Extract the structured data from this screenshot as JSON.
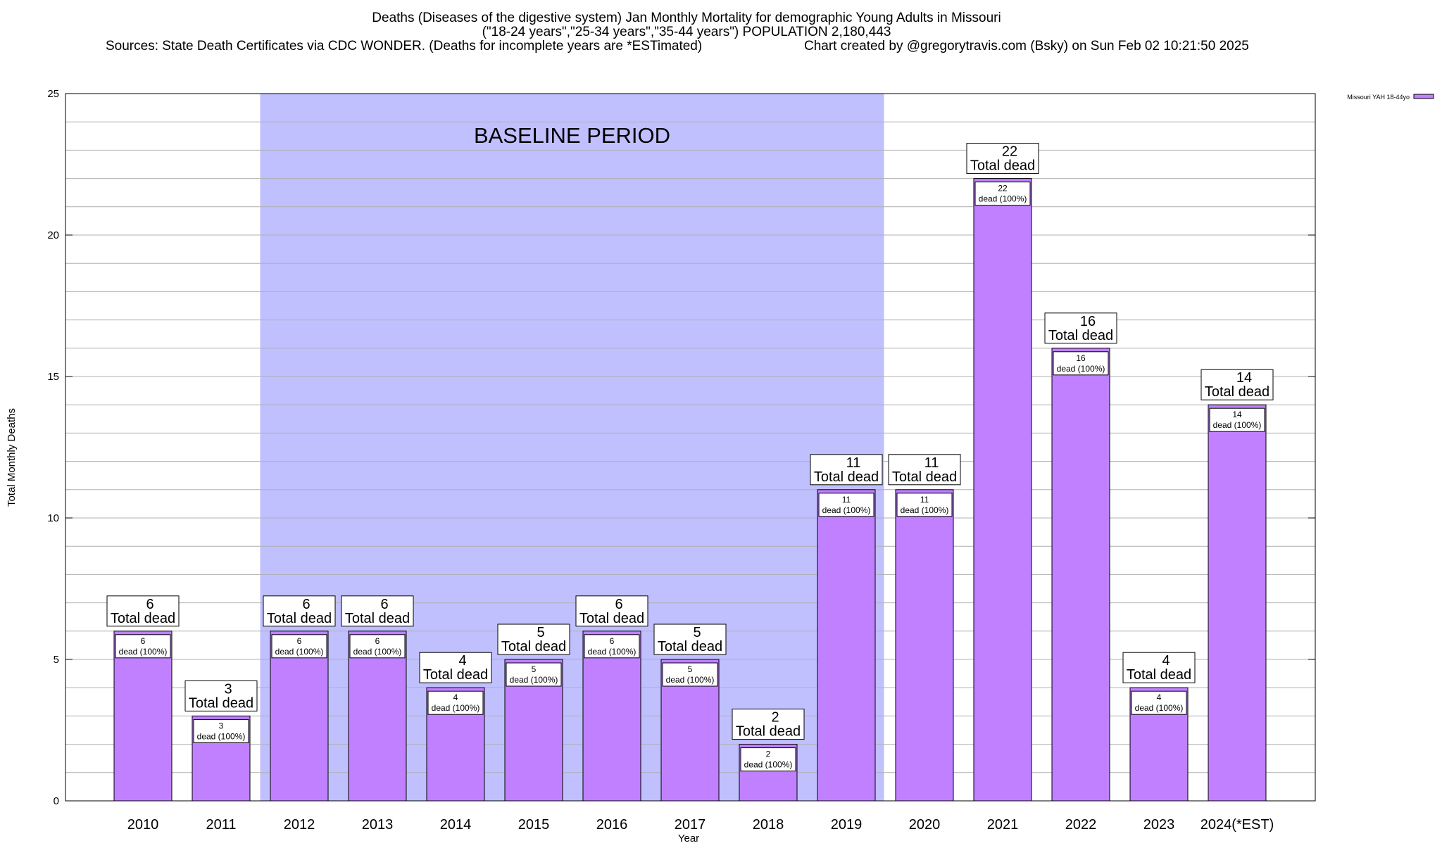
{
  "chart_data": {
    "type": "bar",
    "title_lines": [
      "Deaths (Diseases of the digestive system) Jan Monthly Mortality for demographic Young Adults in Missouri",
      "(\"18-24 years\",\"25-34 years\",\"35-44 years\") POPULATION 2,180,443"
    ],
    "source_text": "Sources: State Death Certificates via CDC WONDER. (Deaths for incomplete years are *ESTimated)",
    "credit_text": "Chart created by @gregorytravis.com (Bsky) on Sun Feb 02 10:21:50 2025",
    "xlabel": "Year",
    "ylabel": "Total Monthly Deaths",
    "ylim": [
      0,
      25
    ],
    "yticks": [
      0,
      5,
      10,
      15,
      20,
      25
    ],
    "grid": true,
    "legend_position": "top-right",
    "baseline": {
      "label": "BASELINE PERIOD",
      "from_category": "2012",
      "to_category": "2019",
      "color": "#c0c0ff"
    },
    "categories": [
      "2010",
      "2011",
      "2012",
      "2013",
      "2014",
      "2015",
      "2016",
      "2017",
      "2018",
      "2019",
      "2020",
      "2021",
      "2022",
      "2023",
      "2024(*EST)"
    ],
    "series": [
      {
        "name": "Missouri YAH 18-44yo",
        "color": "#c080ff",
        "values": [
          6,
          3,
          6,
          6,
          4,
          5,
          6,
          5,
          2,
          11,
          11,
          22,
          16,
          4,
          14
        ]
      }
    ],
    "total_label_suffix": "Total dead",
    "inner_label_suffix": "dead (100%)"
  }
}
